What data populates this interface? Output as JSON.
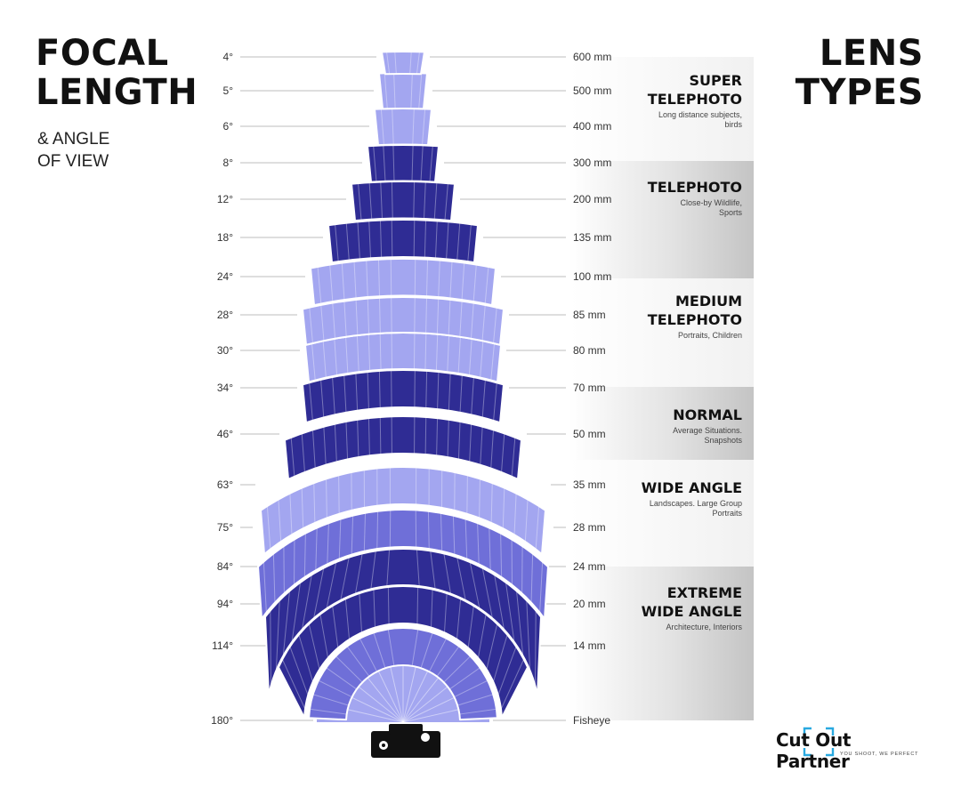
{
  "title": {
    "line1": "FOCAL",
    "line2": "LENGTH"
  },
  "subtitle": {
    "line1": "& ANGLE",
    "line2": "OF VIEW"
  },
  "right_title": {
    "line1": "LENS",
    "line2": "TYPES"
  },
  "rows": [
    {
      "angle": "4°",
      "focal": "600 mm"
    },
    {
      "angle": "5°",
      "focal": "500 mm"
    },
    {
      "angle": "6°",
      "focal": "400 mm"
    },
    {
      "angle": "8°",
      "focal": "300 mm"
    },
    {
      "angle": "12°",
      "focal": "200 mm"
    },
    {
      "angle": "18°",
      "focal": "135 mm"
    },
    {
      "angle": "24°",
      "focal": "100 mm"
    },
    {
      "angle": "28°",
      "focal": "85 mm"
    },
    {
      "angle": "30°",
      "focal": "80 mm"
    },
    {
      "angle": "34°",
      "focal": "70 mm"
    },
    {
      "angle": "46°",
      "focal": "50 mm"
    },
    {
      "angle": "63°",
      "focal": "35 mm"
    },
    {
      "angle": "75°",
      "focal": "28 mm"
    },
    {
      "angle": "84°",
      "focal": "24 mm"
    },
    {
      "angle": "94°",
      "focal": "20 mm"
    },
    {
      "angle": "114°",
      "focal": "14 mm"
    },
    {
      "angle": "180°",
      "focal": "Fisheye"
    }
  ],
  "lens_types": [
    {
      "name": "SUPER\nTELEPHOTO",
      "desc": "Long distance subjects,\nbirds",
      "shade": "light"
    },
    {
      "name": "TELEPHOTO",
      "desc": "Close-by Wildlife,\nSports",
      "shade": "dark"
    },
    {
      "name": "MEDIUM\nTELEPHOTO",
      "desc": "Portraits, Children",
      "shade": "light"
    },
    {
      "name": "NORMAL",
      "desc": "Average Situations.\nSnapshots",
      "shade": "dark"
    },
    {
      "name": "WIDE ANGLE",
      "desc": "Landscapes. Large Group\nPortraits",
      "shade": "light"
    },
    {
      "name": "EXTREME\nWIDE ANGLE",
      "desc": "Architecture, Interiors",
      "shade": "dark"
    }
  ],
  "colors": {
    "light": "#a3a6f0",
    "mid": "#6f6fd8",
    "dark": "#2f2c94",
    "band_dark": "#c9c9c9",
    "band_light": "#f2f2f2"
  },
  "logo": {
    "text": "Cut Out Partner",
    "tagline": "YOU SHOOT, WE PERFECT"
  }
}
